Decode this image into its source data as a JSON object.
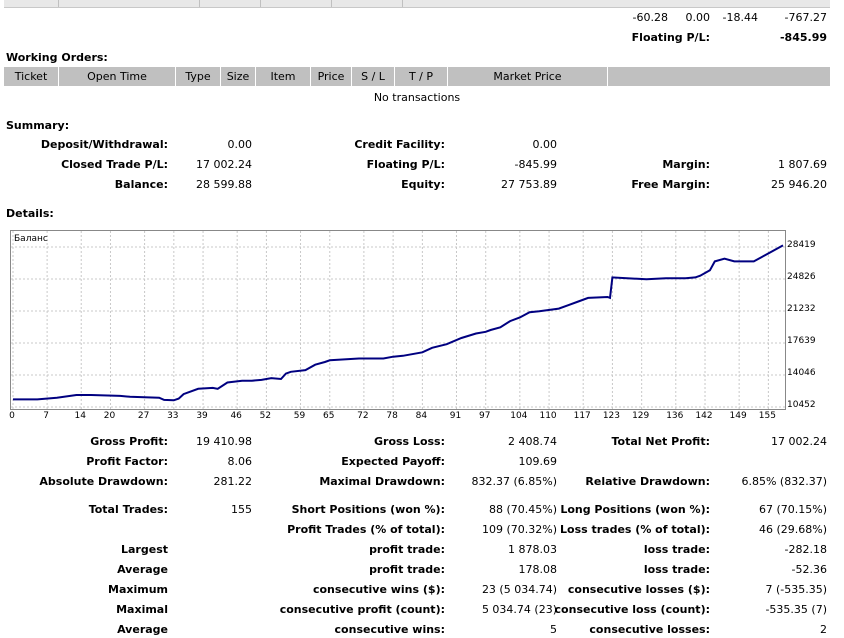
{
  "top_row": {
    "v1": "-60.28",
    "v2": "0.00",
    "v3": "-18.44",
    "v4": "-767.27"
  },
  "floating_label": "Floating P/L:",
  "floating_value": "-845.99",
  "working_orders": {
    "title": "Working Orders:",
    "columns": [
      "Ticket",
      "Open Time",
      "Type",
      "Size",
      "Item",
      "Price",
      "S / L",
      "T / P",
      "Market Price",
      ""
    ],
    "empty": "No transactions"
  },
  "summary": {
    "title": "Summary:",
    "deposit_label": "Deposit/Withdrawal:",
    "deposit_value": "0.00",
    "credit_label": "Credit Facility:",
    "credit_value": "0.00",
    "closed_label": "Closed Trade P/L:",
    "closed_value": "17 002.24",
    "floating_label": "Floating P/L:",
    "floating_value": "-845.99",
    "margin_label": "Margin:",
    "margin_value": "1 807.69",
    "balance_label": "Balance:",
    "balance_value": "28 599.88",
    "equity_label": "Equity:",
    "equity_value": "27 753.89",
    "free_margin_label": "Free Margin:",
    "free_margin_value": "25 946.20"
  },
  "details": {
    "title": "Details:"
  },
  "chart_data": {
    "type": "line",
    "title": "Баланс",
    "x_ticks": [
      "0",
      "7",
      "14",
      "20",
      "27",
      "33",
      "39",
      "46",
      "52",
      "59",
      "65",
      "72",
      "78",
      "84",
      "91",
      "97",
      "104",
      "110",
      "117",
      "123",
      "129",
      "136",
      "142",
      "149",
      "155"
    ],
    "y_ticks": [
      "28419",
      "24826",
      "21232",
      "17639",
      "14046",
      "10452"
    ],
    "ylim": [
      10452,
      28419
    ],
    "xlim": [
      0,
      158
    ],
    "series": [
      {
        "x": [
          0,
          5,
          9,
          13,
          16,
          22,
          24,
          30,
          31,
          33,
          34,
          35,
          38,
          41,
          42,
          44,
          47,
          49,
          51,
          53,
          55,
          56,
          57,
          60,
          62,
          64,
          65,
          68,
          71,
          76,
          78,
          80,
          84,
          86,
          89,
          92,
          95,
          97,
          98,
          100,
          102,
          104,
          106,
          108,
          112,
          114,
          116,
          118,
          122,
          122.5,
          123,
          126,
          130,
          134,
          138,
          140,
          141,
          143,
          144,
          146,
          148,
          152,
          158
        ],
        "y": [
          11300,
          11300,
          11500,
          11800,
          11800,
          11700,
          11600,
          11500,
          11250,
          11200,
          11400,
          11900,
          12500,
          12600,
          12500,
          13200,
          13400,
          13400,
          13500,
          13700,
          13600,
          14200,
          14400,
          14600,
          15200,
          15500,
          15700,
          15800,
          15900,
          15900,
          16100,
          16200,
          16600,
          17100,
          17500,
          18200,
          18700,
          18900,
          19100,
          19400,
          20100,
          20500,
          21100,
          21200,
          21500,
          21900,
          22300,
          22700,
          22800,
          22700,
          25000,
          24900,
          24800,
          24900,
          24900,
          25000,
          25200,
          25800,
          26800,
          27100,
          26800,
          26800,
          28600
        ]
      }
    ]
  },
  "stats": {
    "gross_profit_label": "Gross Profit:",
    "gross_profit": "19 410.98",
    "gross_loss_label": "Gross Loss:",
    "gross_loss": "2 408.74",
    "net_profit_label": "Total Net Profit:",
    "net_profit": "17 002.24",
    "profit_factor_label": "Profit Factor:",
    "profit_factor": "8.06",
    "expected_payoff_label": "Expected Payoff:",
    "expected_payoff": "109.69",
    "abs_dd_label": "Absolute Drawdown:",
    "abs_dd": "281.22",
    "max_dd_label": "Maximal Drawdown:",
    "max_dd": "832.37 (6.85%)",
    "rel_dd_label": "Relative Drawdown:",
    "rel_dd": "6.85% (832.37)",
    "total_trades_label": "Total Trades:",
    "total_trades": "155",
    "short_label": "Short Positions (won %):",
    "short": "88 (70.45%)",
    "long_label": "Long Positions (won %):",
    "long": "67 (70.15%)",
    "profit_trades_label": "Profit Trades (% of total):",
    "profit_trades": "109 (70.32%)",
    "loss_trades_label": "Loss trades (% of total):",
    "loss_trades": "46 (29.68%)",
    "largest_label": "Largest",
    "lp_label": "profit trade:",
    "lp": "1 878.03",
    "ll_label": "loss trade:",
    "ll": "-282.18",
    "average_label": "Average",
    "ap_label": "profit trade:",
    "ap": "178.08",
    "al_label": "loss trade:",
    "al": "-52.36",
    "maximum_label": "Maximum",
    "mcw_label": "consecutive wins ($):",
    "mcw": "23 (5 034.74)",
    "mcl_label": "consecutive losses ($):",
    "mcl": "7 (-535.35)",
    "maximal_label": "Maximal",
    "mcp_label": "consecutive profit (count):",
    "mcp": "5 034.74 (23)",
    "mclc_label": "consecutive loss (count):",
    "mclc": "-535.35 (7)",
    "average2_label": "Average",
    "acw_label": "consecutive wins:",
    "acw": "5",
    "acl_label": "consecutive losses:",
    "acl": "2"
  }
}
